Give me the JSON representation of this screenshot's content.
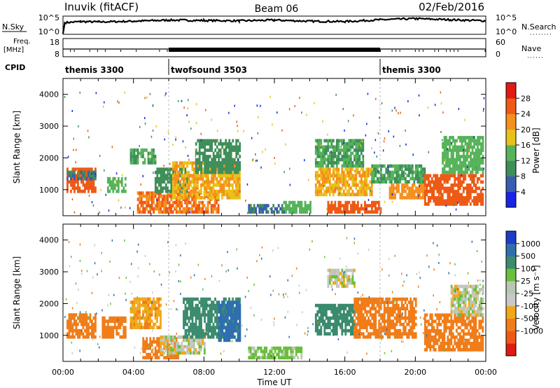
{
  "header": {
    "station": "Inuvik (fitACF)",
    "beam": "Beam 06",
    "date": "02/Feb/2016"
  },
  "top_panels": {
    "nsky_label": "N.Sky",
    "nsky_ticks": [
      "10^5",
      "10^0"
    ],
    "nsearch_label": "N.Search",
    "nsearch_ticks": [
      "10^5",
      "10^0"
    ],
    "freq_label_1": "Freq.",
    "freq_label_2": "[MHz]",
    "freq_ticks": [
      "18",
      "8"
    ],
    "nave_label": "Nave",
    "nave_ticks": [
      "60",
      "0"
    ],
    "cpid_label": "CPID",
    "cpid_segments": [
      {
        "label": "themis 3300",
        "start_hour": 0,
        "end_hour": 6
      },
      {
        "label": "twofsound 3503",
        "start_hour": 6,
        "end_hour": 18
      },
      {
        "label": "themis 3300",
        "start_hour": 18,
        "end_hour": 24
      }
    ]
  },
  "axes": {
    "ylabel": "Slant Range [km]",
    "xlabel": "Time UT",
    "y_ticks": [
      "1000",
      "2000",
      "3000",
      "4000"
    ],
    "x_ticks": [
      "00:00",
      "04:00",
      "08:00",
      "12:00",
      "16:00",
      "20:00",
      "00:00"
    ]
  },
  "colorbars": {
    "power": {
      "label": "Power [dB]",
      "ticks": [
        "4",
        "8",
        "12",
        "16",
        "20",
        "24",
        "28"
      ],
      "colors": [
        "#1a23e6",
        "#3a5db0",
        "#3f8f5a",
        "#56b35a",
        "#e8c21a",
        "#f5901e",
        "#ee5a16",
        "#e11a14"
      ]
    },
    "velocity": {
      "label": "Velocity [m s⁻¹]",
      "ticks": [
        "1000",
        "500",
        "100",
        "25",
        "-25",
        "-100",
        "-500",
        "-1000"
      ],
      "colors": [
        "#1d3cc8",
        "#2f6fae",
        "#3b8b6e",
        "#6abf3b",
        "#b9c8b4",
        "#c8c8c8",
        "#f0a81a",
        "#f07d1a",
        "#ee5a16",
        "#e01a14"
      ]
    }
  },
  "chart_data": [
    {
      "type": "line",
      "title": "N.Sky / N.Search",
      "x_hours": [
        0,
        0.1,
        1,
        2,
        4,
        6,
        8,
        10,
        12,
        14,
        16,
        18,
        20,
        22,
        24
      ],
      "log10_values": [
        0.2,
        3.2,
        3.5,
        3.4,
        3.6,
        3.9,
        3.8,
        3.7,
        3.9,
        3.6,
        3.5,
        4.0,
        4.3,
        4.0,
        3.7
      ]
    },
    {
      "type": "line",
      "title": "Freq. / Nave",
      "x_hours": [
        0,
        6,
        6.01,
        18,
        18.01,
        24
      ],
      "freq_mhz": [
        10,
        10,
        10,
        10,
        10,
        10
      ],
      "nave_states": [
        "sparse",
        "dense",
        "sparse"
      ]
    },
    {
      "type": "heatmap",
      "title": "Power [dB]",
      "xlim_hours": [
        0,
        24
      ],
      "ylim_km": [
        180,
        4500
      ],
      "regions": [
        {
          "t0": 0.2,
          "t1": 1.8,
          "r0": 900,
          "r1": 1600,
          "value": 26
        },
        {
          "t0": 0.2,
          "t1": 1.8,
          "r0": 1300,
          "r1": 1500,
          "value": 8
        },
        {
          "t0": 2.5,
          "t1": 3.5,
          "r0": 900,
          "r1": 1300,
          "value": 14
        },
        {
          "t0": 3.8,
          "t1": 5.2,
          "r0": 1800,
          "r1": 2200,
          "value": 12
        },
        {
          "t0": 4.2,
          "t1": 8.8,
          "r0": 250,
          "r1": 900,
          "value": 24
        },
        {
          "t0": 5.2,
          "t1": 7.0,
          "r0": 900,
          "r1": 1600,
          "value": 10
        },
        {
          "t0": 6.2,
          "t1": 10.0,
          "r0": 700,
          "r1": 1800,
          "value": 20
        },
        {
          "t0": 7.5,
          "t1": 10.0,
          "r0": 1500,
          "r1": 2500,
          "value": 10
        },
        {
          "t0": 10.5,
          "t1": 12.5,
          "r0": 250,
          "r1": 450,
          "value": 8
        },
        {
          "t0": 12.5,
          "t1": 14.0,
          "r0": 250,
          "r1": 600,
          "value": 14
        },
        {
          "t0": 14.3,
          "t1": 17.5,
          "r0": 800,
          "r1": 1600,
          "value": 20
        },
        {
          "t0": 14.3,
          "t1": 17.0,
          "r0": 1700,
          "r1": 2500,
          "value": 12
        },
        {
          "t0": 15.0,
          "t1": 18.0,
          "r0": 250,
          "r1": 600,
          "value": 26
        },
        {
          "t0": 17.5,
          "t1": 20.5,
          "r0": 1200,
          "r1": 1700,
          "value": 12
        },
        {
          "t0": 18.5,
          "t1": 20.5,
          "r0": 700,
          "r1": 1100,
          "value": 22
        },
        {
          "t0": 20.5,
          "t1": 23.8,
          "r0": 500,
          "r1": 1400,
          "value": 26
        },
        {
          "t0": 21.5,
          "t1": 23.8,
          "r0": 1500,
          "r1": 2600,
          "value": 14
        }
      ]
    },
    {
      "type": "heatmap",
      "title": "Velocity [m s⁻¹]",
      "xlim_hours": [
        0,
        24
      ],
      "ylim_km": [
        180,
        4500
      ],
      "regions": [
        {
          "t0": 0.2,
          "t1": 1.8,
          "r0": 900,
          "r1": 1600,
          "value": -150
        },
        {
          "t0": 2.2,
          "t1": 3.5,
          "r0": 900,
          "r1": 1500,
          "value": -200
        },
        {
          "t0": 3.8,
          "t1": 5.5,
          "r0": 1200,
          "r1": 2100,
          "value": -80
        },
        {
          "t0": 4.5,
          "t1": 6.5,
          "r0": 250,
          "r1": 900,
          "value": -300
        },
        {
          "t0": 5.5,
          "t1": 8.0,
          "r0": 400,
          "r1": 900,
          "value": 0
        },
        {
          "t0": 6.8,
          "t1": 10.0,
          "r0": 900,
          "r1": 2100,
          "value": 300
        },
        {
          "t0": 8.8,
          "t1": 10.0,
          "r0": 800,
          "r1": 2000,
          "value": 800
        },
        {
          "t0": 10.5,
          "t1": 13.5,
          "r0": 250,
          "r1": 550,
          "value": 50
        },
        {
          "t0": 14.3,
          "t1": 16.5,
          "r0": 1000,
          "r1": 1900,
          "value": 150
        },
        {
          "t0": 15.0,
          "t1": 16.5,
          "r0": 2500,
          "r1": 3000,
          "value": 0
        },
        {
          "t0": 16.5,
          "t1": 20.0,
          "r0": 900,
          "r1": 2100,
          "value": -250
        },
        {
          "t0": 20.5,
          "t1": 23.8,
          "r0": 500,
          "r1": 1600,
          "value": -300
        },
        {
          "t0": 22.0,
          "t1": 23.8,
          "r0": 1600,
          "r1": 2500,
          "value": 0
        }
      ]
    }
  ]
}
